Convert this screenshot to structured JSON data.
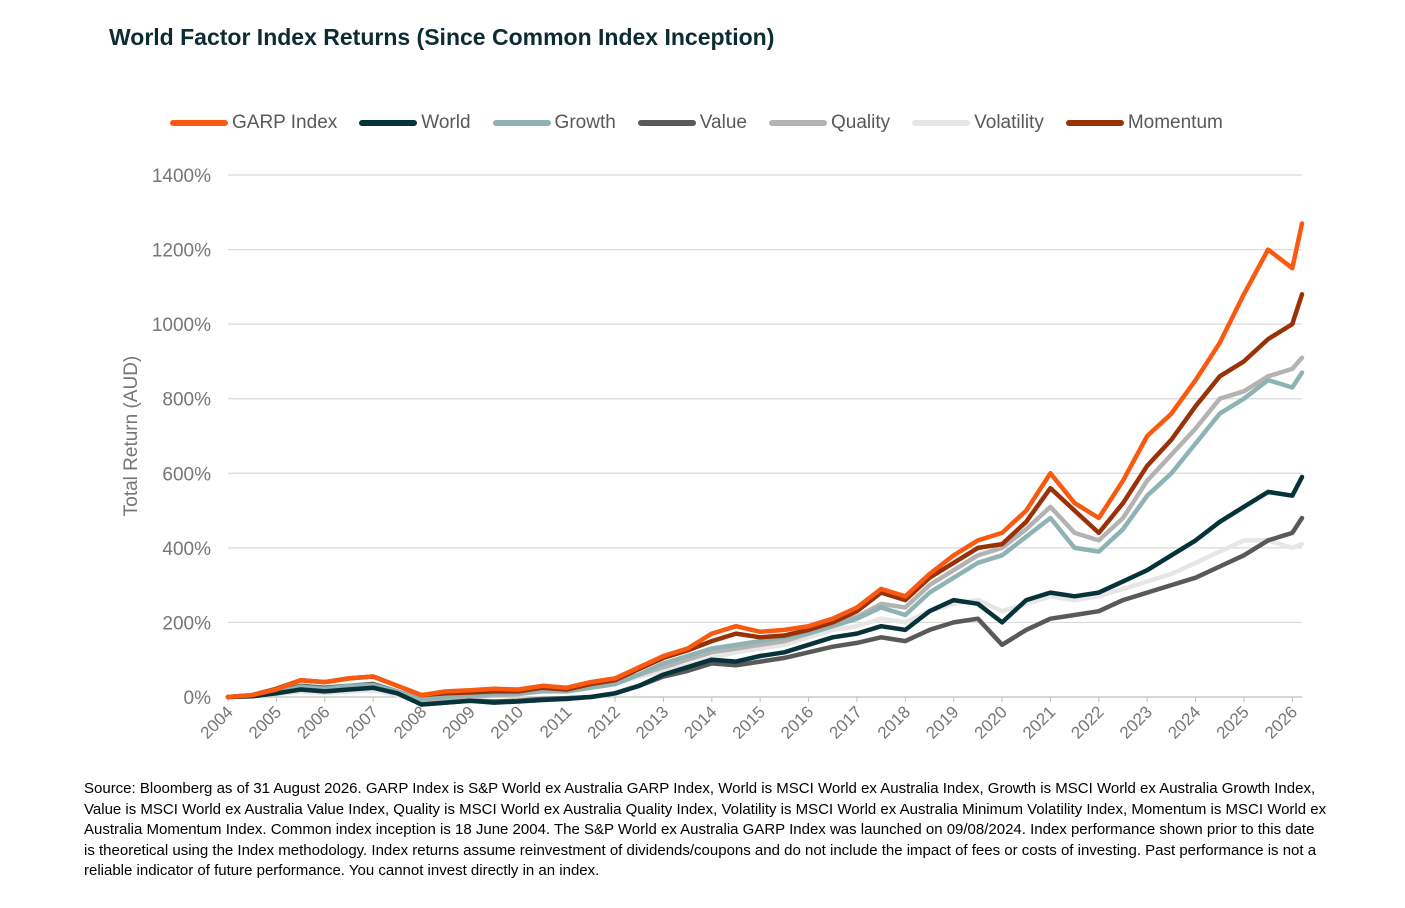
{
  "title": "World Factor Index Returns (Since Common Index Inception)",
  "source_note": "Source: Bloomberg as of 31 August 2026. GARP Index is S&P World ex Australia GARP Index, World is MSCI World ex Australia Index, Growth is MSCI World ex Australia Growth Index, Value is MSCI World ex Australia Value Index, Quality is MSCI World ex Australia Quality Index, Volatility is MSCI World ex Australia Minimum Volatility Index, Momentum is MSCI World ex Australia Momentum Index. Common index inception is 18 June 2004. The S&P World ex Australia GARP Index was launched on 09/08/2024. Index performance shown prior to this date is theoretical using the Index methodology. Index returns assume reinvestment of dividends/coupons and do not include the impact of fees or costs of investing. Past performance is not a reliable indicator of future performance. You cannot invest directly in an index.",
  "chart_data": {
    "type": "line",
    "title": "World Factor Index Returns (Since Common Index Inception)",
    "ylabel": "Total Return (AUD)",
    "xlabel": "",
    "ylim": [
      0,
      1400
    ],
    "xlim": [
      2004,
      2026.2
    ],
    "yticks": [
      "0%",
      "200%",
      "400%",
      "600%",
      "800%",
      "1000%",
      "1200%",
      "1400%"
    ],
    "ytick_values": [
      0,
      200,
      400,
      600,
      800,
      1000,
      1200,
      1400
    ],
    "xticks": [
      "2004",
      "2005",
      "2006",
      "2007",
      "2008",
      "2009",
      "2010",
      "2011",
      "2012",
      "2013",
      "2014",
      "2015",
      "2016",
      "2017",
      "2018",
      "2019",
      "2020",
      "2021",
      "2022",
      "2023",
      "2024",
      "2025",
      "2026"
    ],
    "xtick_values": [
      2004,
      2005,
      2006,
      2007,
      2008,
      2009,
      2010,
      2011,
      2012,
      2013,
      2014,
      2015,
      2016,
      2017,
      2018,
      2019,
      2020,
      2021,
      2022,
      2023,
      2024,
      2025,
      2026
    ],
    "grid": true,
    "legend_position": "top",
    "x": [
      2004.0,
      2004.5,
      2005.0,
      2005.5,
      2006.0,
      2006.5,
      2007.0,
      2007.5,
      2008.0,
      2008.5,
      2009.0,
      2009.5,
      2010.0,
      2010.5,
      2011.0,
      2011.5,
      2012.0,
      2012.5,
      2013.0,
      2013.5,
      2014.0,
      2014.5,
      2015.0,
      2015.5,
      2016.0,
      2016.5,
      2017.0,
      2017.5,
      2018.0,
      2018.5,
      2019.0,
      2019.5,
      2020.0,
      2020.5,
      2021.0,
      2021.5,
      2022.0,
      2022.5,
      2023.0,
      2023.5,
      2024.0,
      2024.5,
      2025.0,
      2025.5,
      2026.0,
      2026.2
    ],
    "series": [
      {
        "name": "GARP Index",
        "color": "#fa5a0f",
        "values": [
          0,
          5,
          20,
          45,
          40,
          50,
          55,
          30,
          5,
          15,
          18,
          22,
          20,
          30,
          25,
          40,
          50,
          80,
          110,
          130,
          170,
          190,
          175,
          180,
          190,
          210,
          240,
          290,
          270,
          330,
          380,
          420,
          440,
          500,
          600,
          520,
          480,
          580,
          700,
          760,
          850,
          950,
          1080,
          1200,
          1150,
          1270
        ]
      },
      {
        "name": "World",
        "color": "#06323a",
        "values": [
          0,
          2,
          10,
          20,
          15,
          20,
          25,
          10,
          -20,
          -15,
          -10,
          -15,
          -12,
          -8,
          -5,
          0,
          10,
          30,
          60,
          80,
          100,
          95,
          110,
          120,
          140,
          160,
          170,
          190,
          180,
          230,
          260,
          250,
          200,
          260,
          280,
          270,
          280,
          310,
          340,
          380,
          420,
          470,
          510,
          550,
          540,
          590
        ]
      },
      {
        "name": "Growth",
        "color": "#8fb3b5",
        "values": [
          0,
          3,
          12,
          28,
          22,
          30,
          32,
          15,
          -5,
          0,
          5,
          8,
          10,
          18,
          15,
          25,
          35,
          60,
          90,
          110,
          130,
          140,
          150,
          160,
          170,
          190,
          210,
          240,
          220,
          280,
          320,
          360,
          380,
          430,
          480,
          400,
          390,
          450,
          540,
          600,
          680,
          760,
          800,
          850,
          830,
          870
        ]
      },
      {
        "name": "Value",
        "color": "#595959",
        "values": [
          0,
          3,
          15,
          30,
          25,
          30,
          35,
          15,
          -20,
          -15,
          -10,
          -12,
          -10,
          -5,
          -3,
          0,
          10,
          30,
          55,
          70,
          90,
          85,
          95,
          105,
          120,
          135,
          145,
          160,
          150,
          180,
          200,
          210,
          140,
          180,
          210,
          220,
          230,
          260,
          280,
          300,
          320,
          350,
          380,
          420,
          440,
          480
        ]
      },
      {
        "name": "Quality",
        "color": "#b3b3b3",
        "values": [
          0,
          3,
          10,
          20,
          15,
          20,
          25,
          10,
          -10,
          -5,
          0,
          5,
          8,
          15,
          15,
          25,
          35,
          60,
          80,
          100,
          120,
          130,
          140,
          150,
          170,
          195,
          215,
          250,
          240,
          300,
          340,
          380,
          400,
          450,
          510,
          440,
          420,
          480,
          580,
          650,
          720,
          800,
          820,
          860,
          880,
          910
        ]
      },
      {
        "name": "Volatility",
        "color": "#e6e6e6",
        "values": [
          0,
          2,
          8,
          15,
          10,
          15,
          18,
          5,
          -10,
          -5,
          0,
          5,
          10,
          15,
          15,
          25,
          35,
          55,
          70,
          85,
          105,
          120,
          130,
          140,
          160,
          180,
          190,
          210,
          200,
          230,
          250,
          260,
          230,
          250,
          270,
          260,
          270,
          290,
          310,
          330,
          360,
          390,
          420,
          420,
          400,
          410
        ]
      },
      {
        "name": "Momentum",
        "color": "#9a3208",
        "values": [
          0,
          5,
          22,
          45,
          40,
          50,
          55,
          30,
          5,
          10,
          12,
          15,
          15,
          25,
          20,
          35,
          45,
          75,
          105,
          125,
          150,
          170,
          160,
          165,
          180,
          200,
          230,
          280,
          260,
          320,
          360,
          400,
          410,
          470,
          560,
          500,
          440,
          520,
          620,
          690,
          780,
          860,
          900,
          960,
          1000,
          1080
        ]
      }
    ]
  }
}
